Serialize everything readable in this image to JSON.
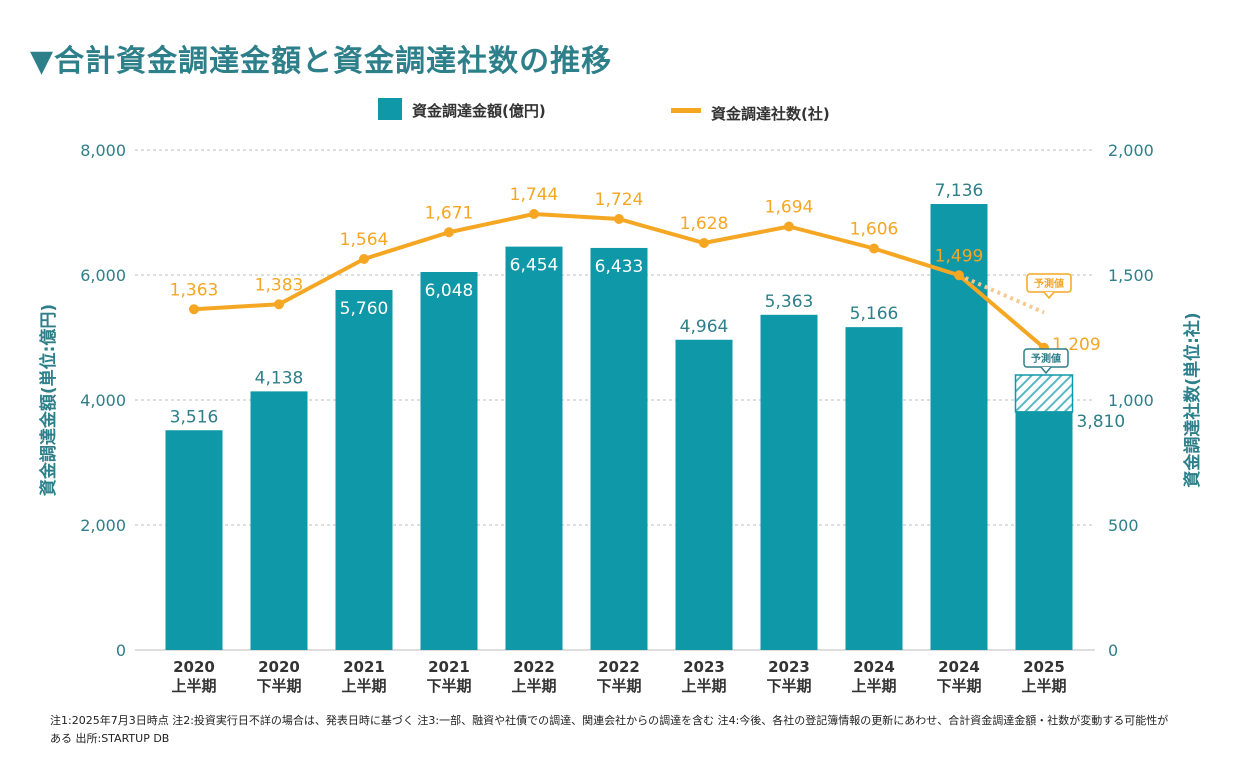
{
  "title": "▼合計資金調達金額と資金調達社数の推移",
  "chart_data": {
    "type": "bar",
    "categories": [
      [
        "2020",
        "上半期"
      ],
      [
        "2020",
        "下半期"
      ],
      [
        "2021",
        "上半期"
      ],
      [
        "2021",
        "下半期"
      ],
      [
        "2022",
        "上半期"
      ],
      [
        "2022",
        "下半期"
      ],
      [
        "2023",
        "上半期"
      ],
      [
        "2023",
        "下半期"
      ],
      [
        "2024",
        "上半期"
      ],
      [
        "2024",
        "下半期"
      ],
      [
        "2025",
        "上半期"
      ]
    ],
    "series": [
      {
        "name": "資金調達金額(億円)",
        "type": "bar",
        "axis": "left",
        "color": "#0f98a8",
        "values": [
          3516,
          4138,
          5760,
          6048,
          6454,
          6433,
          4964,
          5363,
          5166,
          7136,
          3810
        ],
        "labels": [
          "3,516",
          "4,138",
          "5,760",
          "6,048",
          "6,454",
          "6,433",
          "4,964",
          "5,363",
          "5,166",
          "7,136",
          "3,810"
        ]
      },
      {
        "name": "資金調達社数(社)",
        "type": "line",
        "axis": "right",
        "color": "#f5a623",
        "values": [
          1363,
          1383,
          1564,
          1671,
          1744,
          1724,
          1628,
          1694,
          1606,
          1499,
          1209
        ],
        "labels": [
          "1,363",
          "1,383",
          "1,564",
          "1,671",
          "1,744",
          "1,724",
          "1,628",
          "1,694",
          "1,606",
          "1,499",
          "1,209"
        ]
      }
    ],
    "forecast": {
      "label": "予測値",
      "bar_value": 4400,
      "line_value": 1350
    },
    "left_axis": {
      "label": "資金調達金額(単位:億円)",
      "ylim": [
        0,
        8000
      ],
      "ticks": [
        0,
        2000,
        4000,
        6000,
        8000
      ],
      "tick_labels": [
        "0",
        "2,000",
        "4,000",
        "6,000",
        "8,000"
      ]
    },
    "right_axis": {
      "label": "資金調達社数(単位:社)",
      "ylim": [
        0,
        2000
      ],
      "ticks": [
        0,
        500,
        1000,
        1500,
        2000
      ],
      "tick_labels": [
        "0",
        "500",
        "1,000",
        "1,500",
        "2,000"
      ]
    },
    "grid": "horizontal-dashed",
    "legend_position": "top-center",
    "colors": {
      "axis_text": "#2d7f8a",
      "bar_label_inside": "#ffffff",
      "grid": "#bdbdbd"
    }
  },
  "notes": [
    "注1:2025年7月3日時点 注2:投資実行日不詳の場合は、発表日時に基づく 注3:一部、融資や社債での調達、関連会社からの調達を含む 注4:今後、各社の登記簿情報の更新にあわせ、合計資金調達金額・社数が変動する可能性が",
    "ある 出所:STARTUP DB"
  ]
}
